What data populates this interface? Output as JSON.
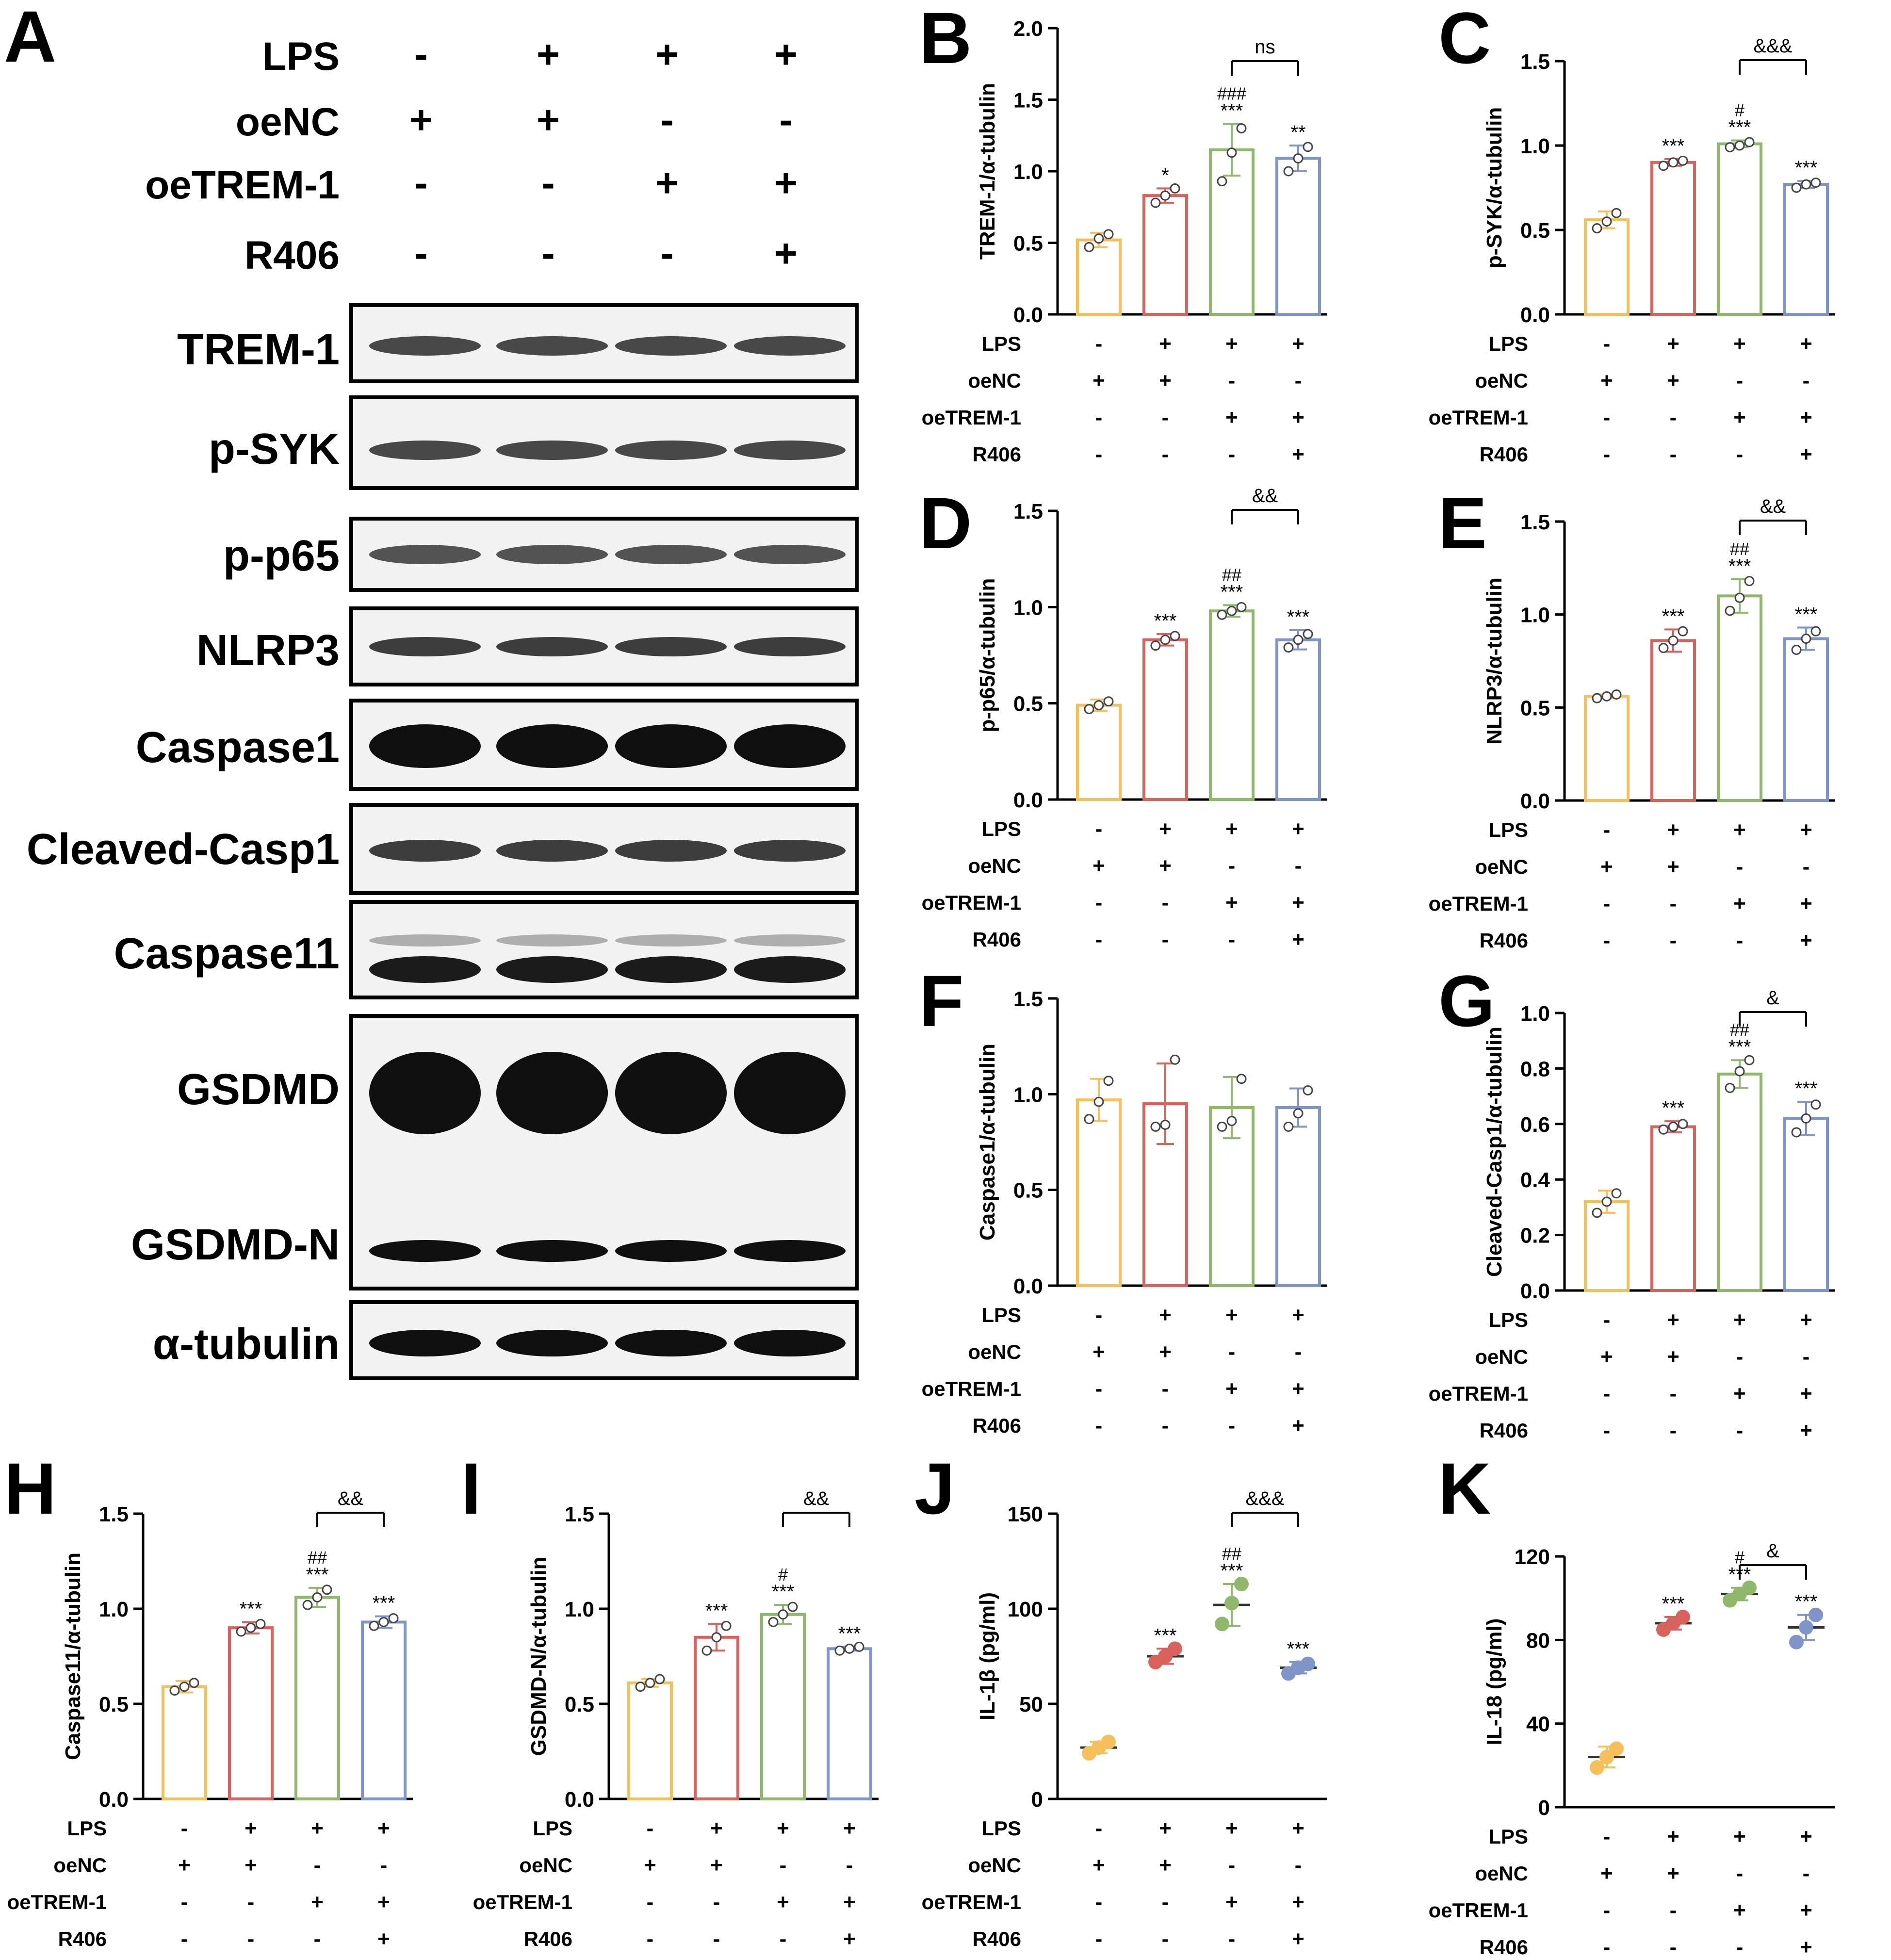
{
  "colors": {
    "group1": "#f5c05a",
    "group2": "#d9635c",
    "group3": "#8fb86a",
    "group4": "#7f95c9",
    "sig": "#000000"
  },
  "conditions": {
    "labels": [
      "LPS",
      "oeNC",
      "oeTREM-1",
      "R406"
    ],
    "signs": [
      [
        "-",
        "+",
        "+",
        "+"
      ],
      [
        "+",
        "+",
        "-",
        "-"
      ],
      [
        "-",
        "-",
        "+",
        "+"
      ],
      [
        "-",
        "-",
        "-",
        "+"
      ]
    ]
  },
  "panel_a": {
    "letter": "A",
    "proteins": [
      "TREM-1",
      "p-SYK",
      "p-p65",
      "NLRP3",
      "Caspase1",
      "Cleaved-Casp1",
      "Caspase11",
      "GSDMD",
      "GSDMD-N",
      "α-tubulin"
    ]
  },
  "chart_data": [
    {
      "panel": "B",
      "type": "bar",
      "ylabel": "TREM-1/α-tubulin",
      "ylim": [
        0,
        2.0
      ],
      "yticks": [
        "0.0",
        "0.5",
        "1.0",
        "1.5",
        "2.0"
      ],
      "values": [
        0.52,
        0.83,
        1.15,
        1.09
      ],
      "errors": [
        0.05,
        0.05,
        0.18,
        0.09
      ],
      "points": [
        [
          0.47,
          0.53,
          0.56
        ],
        [
          0.78,
          0.83,
          0.88
        ],
        [
          0.93,
          1.13,
          1.3
        ],
        [
          1.0,
          1.09,
          1.17
        ]
      ],
      "stars": [
        "",
        "*",
        "***",
        "**"
      ],
      "hashes": [
        "",
        "",
        "###",
        ""
      ],
      "bracket": {
        "from": 2,
        "to": 3,
        "label": "ns"
      }
    },
    {
      "panel": "C",
      "type": "bar",
      "ylabel": "p-SYK/α-tubulin",
      "ylim": [
        0,
        1.5
      ],
      "yticks": [
        "0.0",
        "0.5",
        "1.0",
        "1.5"
      ],
      "values": [
        0.56,
        0.9,
        1.01,
        0.77
      ],
      "errors": [
        0.05,
        0.02,
        0.02,
        0.02
      ],
      "points": [
        [
          0.51,
          0.55,
          0.6
        ],
        [
          0.88,
          0.9,
          0.91
        ],
        [
          0.99,
          1.0,
          1.02
        ],
        [
          0.75,
          0.77,
          0.78
        ]
      ],
      "stars": [
        "",
        "***",
        "***",
        "***"
      ],
      "hashes": [
        "",
        "",
        "#",
        ""
      ],
      "bracket": {
        "from": 2,
        "to": 3,
        "label": "&&&"
      }
    },
    {
      "panel": "D",
      "type": "bar",
      "ylabel": "p-p65/α-tubulin",
      "ylim": [
        0,
        1.5
      ],
      "yticks": [
        "0.0",
        "0.5",
        "1.0",
        "1.5"
      ],
      "values": [
        0.49,
        0.83,
        0.98,
        0.83
      ],
      "errors": [
        0.03,
        0.03,
        0.03,
        0.05
      ],
      "points": [
        [
          0.47,
          0.49,
          0.51
        ],
        [
          0.8,
          0.83,
          0.85
        ],
        [
          0.96,
          0.98,
          1.0
        ],
        [
          0.79,
          0.83,
          0.86
        ]
      ],
      "stars": [
        "",
        "***",
        "***",
        "***"
      ],
      "hashes": [
        "",
        "",
        "##",
        ""
      ],
      "bracket": {
        "from": 2,
        "to": 3,
        "label": "&&"
      }
    },
    {
      "panel": "E",
      "type": "bar",
      "ylabel": "NLRP3/α-tubulin",
      "ylim": [
        0,
        1.5
      ],
      "yticks": [
        "0.0",
        "0.5",
        "1.0",
        "1.5"
      ],
      "values": [
        0.56,
        0.86,
        1.1,
        0.87
      ],
      "errors": [
        0.01,
        0.06,
        0.09,
        0.06
      ],
      "points": [
        [
          0.55,
          0.56,
          0.57
        ],
        [
          0.82,
          0.86,
          0.91
        ],
        [
          1.02,
          1.09,
          1.18
        ],
        [
          0.81,
          0.87,
          0.91
        ]
      ],
      "stars": [
        "",
        "***",
        "***",
        "***"
      ],
      "hashes": [
        "",
        "",
        "##",
        ""
      ],
      "bracket": {
        "from": 2,
        "to": 3,
        "label": "&&"
      }
    },
    {
      "panel": "F",
      "type": "bar",
      "ylabel": "Caspase1/α-tubulin",
      "ylim": [
        0,
        1.5
      ],
      "yticks": [
        "0.0",
        "0.5",
        "1.0",
        "1.5"
      ],
      "values": [
        0.97,
        0.95,
        0.93,
        0.93
      ],
      "errors": [
        0.11,
        0.21,
        0.16,
        0.1
      ],
      "points": [
        [
          0.87,
          0.96,
          1.07
        ],
        [
          0.83,
          0.84,
          1.18
        ],
        [
          0.83,
          0.86,
          1.08
        ],
        [
          0.83,
          0.9,
          1.02
        ]
      ],
      "stars": [
        "",
        "",
        "",
        ""
      ],
      "hashes": [
        "",
        "",
        "",
        ""
      ],
      "bracket": null
    },
    {
      "panel": "G",
      "type": "bar",
      "ylabel": "Cleaved-Casp1/α-tubulin",
      "ylim": [
        0,
        1.0
      ],
      "yticks": [
        "0.0",
        "0.2",
        "0.4",
        "0.6",
        "0.8",
        "1.0"
      ],
      "values": [
        0.32,
        0.59,
        0.78,
        0.62
      ],
      "errors": [
        0.04,
        0.02,
        0.05,
        0.06
      ],
      "points": [
        [
          0.28,
          0.32,
          0.35
        ],
        [
          0.58,
          0.59,
          0.6
        ],
        [
          0.73,
          0.79,
          0.83
        ],
        [
          0.57,
          0.62,
          0.67
        ]
      ],
      "stars": [
        "",
        "***",
        "***",
        "***"
      ],
      "hashes": [
        "",
        "",
        "##",
        ""
      ],
      "bracket": {
        "from": 2,
        "to": 3,
        "label": "&"
      }
    },
    {
      "panel": "H",
      "type": "bar",
      "ylabel": "Caspase11/α-tubulin",
      "ylim": [
        0,
        1.5
      ],
      "yticks": [
        "0.0",
        "0.5",
        "1.0",
        "1.5"
      ],
      "values": [
        0.59,
        0.9,
        1.06,
        0.93
      ],
      "errors": [
        0.03,
        0.03,
        0.05,
        0.03
      ],
      "points": [
        [
          0.57,
          0.59,
          0.61
        ],
        [
          0.88,
          0.9,
          0.92
        ],
        [
          1.02,
          1.06,
          1.1
        ],
        [
          0.91,
          0.93,
          0.95
        ]
      ],
      "stars": [
        "",
        "***",
        "***",
        "***"
      ],
      "hashes": [
        "",
        "",
        "##",
        ""
      ],
      "bracket": {
        "from": 2,
        "to": 3,
        "label": "&&"
      }
    },
    {
      "panel": "I",
      "type": "bar",
      "ylabel": "GSDMD-N/α-tubulin",
      "ylim": [
        0,
        1.5
      ],
      "yticks": [
        "0.0",
        "0.5",
        "1.0",
        "1.5"
      ],
      "values": [
        0.61,
        0.85,
        0.97,
        0.79
      ],
      "errors": [
        0.02,
        0.07,
        0.05,
        0.01
      ],
      "points": [
        [
          0.59,
          0.61,
          0.63
        ],
        [
          0.78,
          0.85,
          0.91
        ],
        [
          0.93,
          0.97,
          1.01
        ],
        [
          0.78,
          0.79,
          0.8
        ]
      ],
      "stars": [
        "",
        "***",
        "***",
        "***"
      ],
      "hashes": [
        "",
        "",
        "#",
        ""
      ],
      "bracket": {
        "from": 2,
        "to": 3,
        "label": "&&"
      }
    },
    {
      "panel": "J",
      "type": "scatter",
      "ylabel": "IL-1β (pg/ml)",
      "ylim": [
        0,
        150
      ],
      "yticks": [
        "0",
        "50",
        "100",
        "150"
      ],
      "values": [
        27,
        75,
        102,
        69
      ],
      "errors": [
        3,
        4,
        11,
        3
      ],
      "points": [
        [
          24,
          27,
          30
        ],
        [
          72,
          75,
          79
        ],
        [
          92,
          103,
          113
        ],
        [
          66,
          69,
          71
        ]
      ],
      "stars": [
        "",
        "***",
        "***",
        "***"
      ],
      "hashes": [
        "",
        "",
        "##",
        ""
      ],
      "bracket": {
        "from": 2,
        "to": 3,
        "label": "&&&"
      }
    },
    {
      "panel": "K",
      "type": "scatter",
      "ylabel": "IL-18 (pg/ml)",
      "ylim": [
        0,
        130
      ],
      "yticks": [
        "0",
        "40",
        "80",
        "120"
      ],
      "values": [
        24,
        88,
        102,
        86
      ],
      "errors": [
        5,
        3,
        3,
        6
      ],
      "points": [
        [
          19,
          24,
          28
        ],
        [
          85,
          88,
          91
        ],
        [
          99,
          102,
          105
        ],
        [
          79,
          86,
          92
        ]
      ],
      "stars": [
        "",
        "***",
        "***",
        "***"
      ],
      "hashes": [
        "",
        "",
        "#",
        ""
      ],
      "bracket": {
        "from": 2,
        "to": 3,
        "label": "&"
      }
    }
  ]
}
